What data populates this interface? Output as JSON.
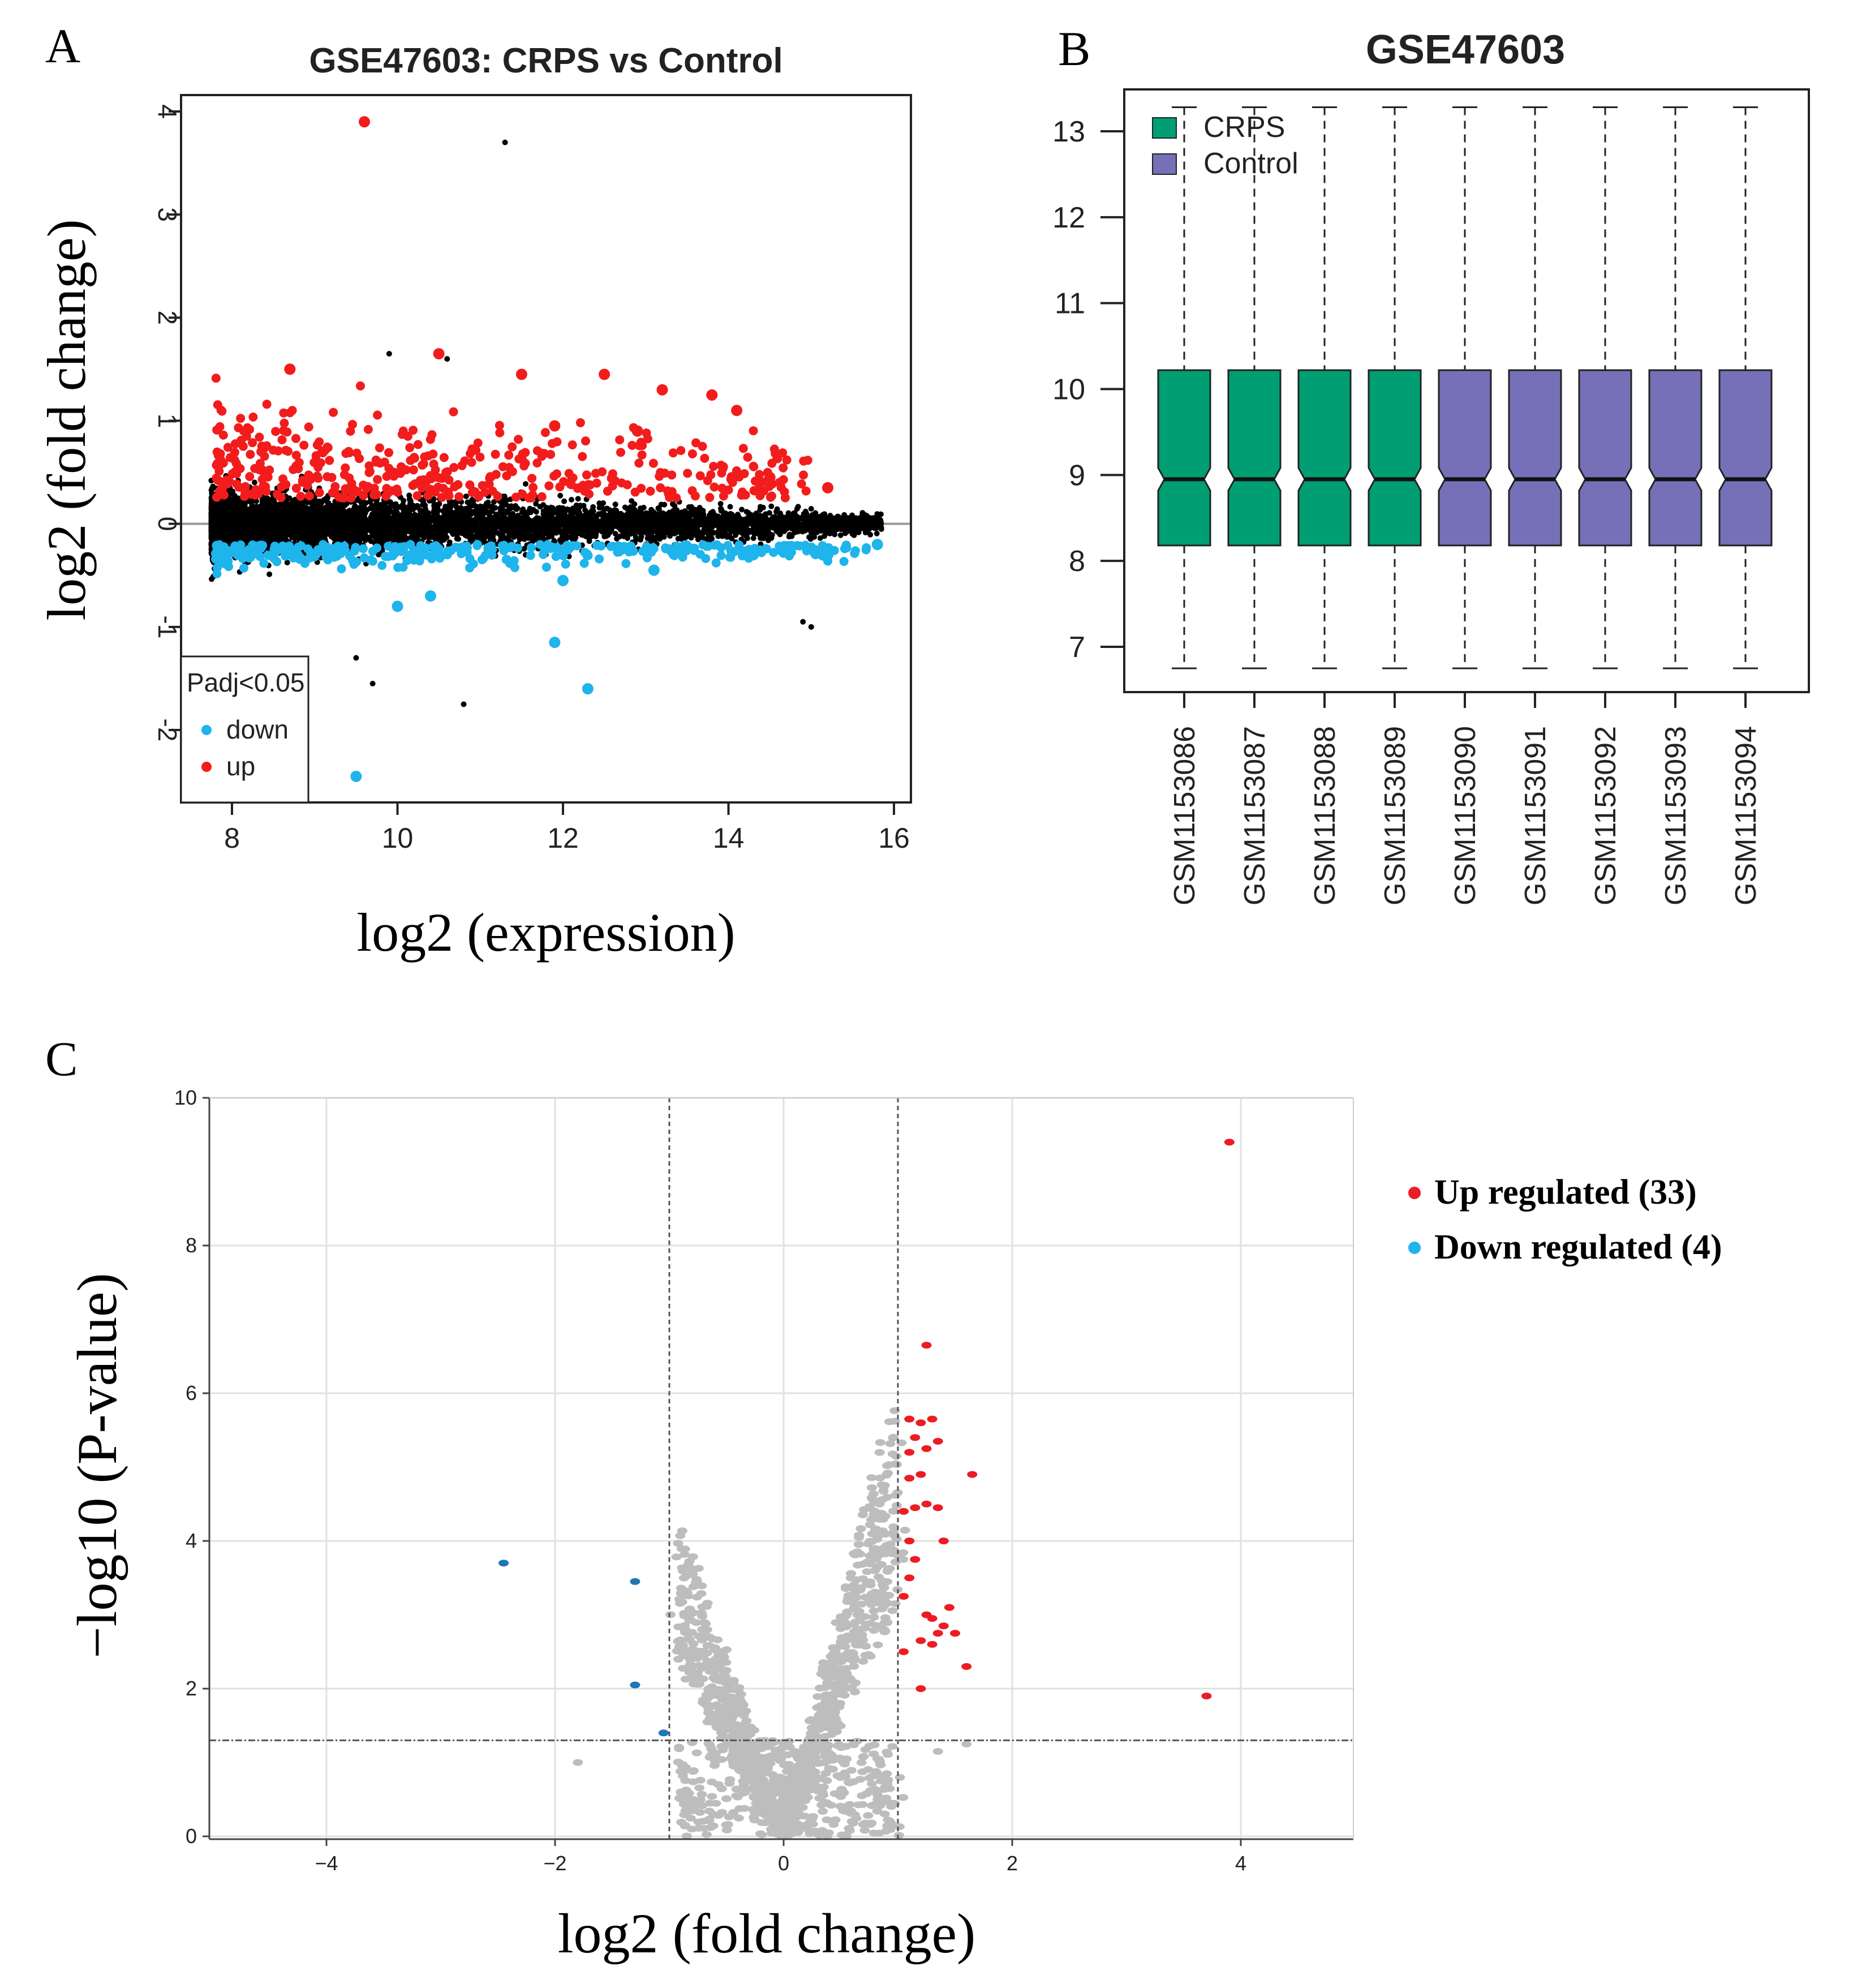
{
  "chart_data": [
    {
      "panel": "A",
      "type": "scatter",
      "title": "GSE47603: CRPS vs Control",
      "xlabel": "log2 (expression)",
      "ylabel": "log2 (fold change)",
      "xlim": [
        7.7,
        16.3
      ],
      "ylim": [
        -2.7,
        4.2
      ],
      "xticks": [
        8,
        10,
        12,
        14,
        16
      ],
      "yticks": [
        -2,
        -1,
        0,
        1,
        2,
        3,
        4
      ],
      "legend": {
        "title": "Padj<0.05",
        "position": "bottom-left",
        "entries": [
          "down",
          "up"
        ]
      },
      "colors": {
        "up": "#f21c1c",
        "down": "#1eb4ec",
        "ns": "#000000"
      },
      "highlight_points": {
        "up": [
          [
            9.6,
            3.9
          ],
          [
            8.7,
            1.5
          ],
          [
            10.5,
            1.65
          ],
          [
            11.5,
            1.45
          ],
          [
            12.5,
            1.45
          ],
          [
            13.2,
            1.3
          ],
          [
            13.8,
            1.25
          ],
          [
            14.1,
            1.1
          ],
          [
            11.9,
            0.95
          ],
          [
            12.9,
            0.9
          ],
          [
            14.5,
            0.45
          ],
          [
            15.2,
            0.35
          ]
        ],
        "down": [
          [
            9.5,
            -2.45
          ],
          [
            12.3,
            -1.6
          ],
          [
            11.9,
            -1.15
          ],
          [
            10.0,
            -0.8
          ],
          [
            10.4,
            -0.7
          ],
          [
            12.0,
            -0.55
          ],
          [
            13.1,
            -0.45
          ],
          [
            14.3,
            -0.3
          ],
          [
            15.2,
            -0.3
          ],
          [
            15.8,
            -0.2
          ]
        ],
        "ns_outliers": [
          [
            11.3,
            3.7
          ],
          [
            10.8,
            -1.75
          ],
          [
            9.7,
            -1.55
          ],
          [
            9.5,
            -1.3
          ],
          [
            14.9,
            -0.95
          ],
          [
            15.0,
            -1.0
          ],
          [
            10.6,
            1.6
          ],
          [
            9.9,
            1.65
          ]
        ]
      }
    },
    {
      "panel": "B",
      "type": "box",
      "title": "GSE47603",
      "categories": [
        "GSM1153086",
        "GSM1153087",
        "GSM1153088",
        "GSM1153089",
        "GSM1153090",
        "GSM1153091",
        "GSM1153092",
        "GSM1153093",
        "GSM1153094"
      ],
      "groups": [
        "CRPS",
        "CRPS",
        "CRPS",
        "CRPS",
        "Control",
        "Control",
        "Control",
        "Control",
        "Control"
      ],
      "stats": {
        "whisker_low": 6.75,
        "q1": 8.18,
        "median": 8.95,
        "q3": 10.22,
        "whisker_high": 13.28
      },
      "ylim": [
        6.5,
        13.5
      ],
      "yticks": [
        7,
        8,
        9,
        10,
        11,
        12,
        13
      ],
      "legend": {
        "position": "top-left",
        "entries": [
          {
            "label": "CRPS",
            "color": "#009e73"
          },
          {
            "label": "Control",
            "color": "#7570b7"
          }
        ]
      }
    },
    {
      "panel": "C",
      "type": "scatter",
      "xlabel": "log2 (fold change)",
      "ylabel": "−log10 (P-value)",
      "xlim": [
        -5,
        5
      ],
      "ylim": [
        0,
        10
      ],
      "xticks": [
        -4,
        -2,
        0,
        2,
        4
      ],
      "yticks": [
        0,
        2,
        4,
        6,
        8,
        10
      ],
      "vlines": [
        -1,
        1
      ],
      "hline": 1.3,
      "colors": {
        "up": "#ed1c24",
        "down": "#1f78b4",
        "ns": "#bdbdbd"
      },
      "up_points": [
        [
          3.9,
          9.4
        ],
        [
          1.25,
          6.65
        ],
        [
          1.1,
          5.65
        ],
        [
          1.2,
          5.6
        ],
        [
          1.3,
          5.65
        ],
        [
          1.15,
          5.4
        ],
        [
          1.35,
          5.35
        ],
        [
          1.1,
          5.2
        ],
        [
          1.25,
          5.25
        ],
        [
          1.65,
          4.9
        ],
        [
          1.1,
          4.85
        ],
        [
          1.2,
          4.9
        ],
        [
          1.25,
          4.5
        ],
        [
          1.15,
          4.45
        ],
        [
          1.35,
          4.45
        ],
        [
          1.05,
          4.4
        ],
        [
          1.4,
          4.0
        ],
        [
          1.1,
          4.0
        ],
        [
          1.15,
          3.75
        ],
        [
          1.1,
          3.5
        ],
        [
          1.05,
          3.25
        ],
        [
          1.45,
          3.1
        ],
        [
          1.25,
          3.0
        ],
        [
          1.3,
          2.95
        ],
        [
          1.4,
          2.85
        ],
        [
          1.35,
          2.75
        ],
        [
          1.5,
          2.75
        ],
        [
          1.2,
          2.65
        ],
        [
          1.3,
          2.6
        ],
        [
          1.6,
          2.3
        ],
        [
          1.05,
          2.5
        ],
        [
          1.2,
          2.0
        ],
        [
          3.7,
          1.9
        ]
      ],
      "down_points": [
        [
          -2.45,
          3.7
        ],
        [
          -1.3,
          3.45
        ],
        [
          -1.3,
          2.05
        ],
        [
          -1.05,
          1.4
        ]
      ],
      "legend": {
        "position": "right",
        "entries": [
          "Up regulated (33)",
          "Down regulated (4)"
        ]
      }
    }
  ]
}
